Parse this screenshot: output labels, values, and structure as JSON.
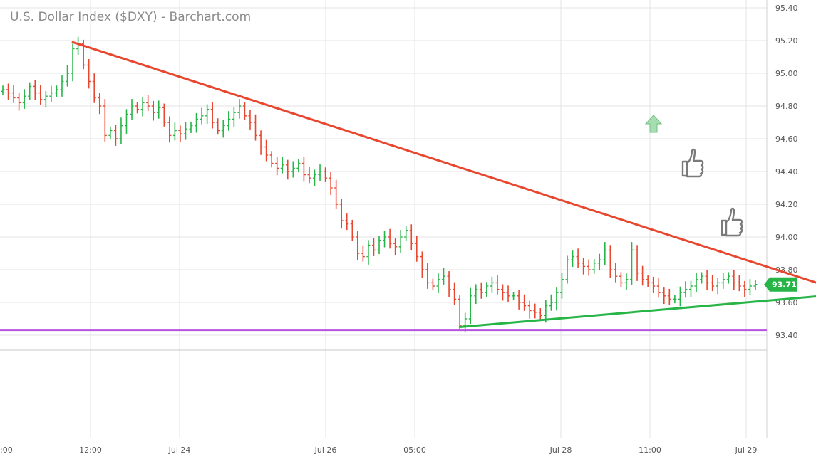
{
  "chart_data": {
    "type": "candlestick",
    "title": "U.S. Dollar Index ($DXY) - Barchart.com",
    "xlabel": "",
    "ylabel": "",
    "ylim": [
      93.3,
      95.45
    ],
    "yticks": [
      "95.40",
      "95.20",
      "95.00",
      "94.80",
      "94.60",
      "94.40",
      "94.20",
      "94.00",
      "93.80",
      "93.60",
      "93.40"
    ],
    "xticks": [
      ":00",
      "12:00",
      "Jul 24",
      "Jul 26",
      "05:00",
      "Jul 28",
      "11:00",
      "Jul 29"
    ],
    "last_price": "93.71",
    "grid": true,
    "series": [
      {
        "values": [
          94.9,
          94.88,
          94.85,
          94.82,
          94.86,
          94.92,
          94.88,
          94.84,
          94.86,
          94.88,
          94.9,
          94.95,
          95.0,
          95.15,
          95.18,
          95.05,
          94.95,
          94.85,
          94.8,
          94.62,
          94.65,
          94.6,
          94.68,
          94.75,
          94.8,
          94.78,
          94.82,
          94.8,
          94.76,
          94.79,
          94.7,
          94.62,
          94.65,
          94.63,
          94.66,
          94.68,
          94.72,
          94.74,
          94.78,
          94.7,
          94.65,
          94.68,
          94.72,
          94.76,
          94.8,
          94.74,
          94.7,
          94.62,
          94.55,
          94.5,
          94.45,
          94.42,
          94.44,
          94.4,
          94.42,
          94.45,
          94.38,
          94.36,
          94.38,
          94.4,
          94.36,
          94.3,
          94.2,
          94.1,
          94.08,
          94.0,
          93.9,
          93.88,
          93.95,
          93.92,
          93.98,
          94.0,
          93.96,
          93.94,
          94.0,
          94.04,
          93.96,
          93.88,
          93.8,
          93.72,
          93.7,
          93.74,
          93.76,
          93.68,
          93.62,
          93.46,
          93.5,
          93.64,
          93.68,
          93.66,
          93.7,
          93.72,
          93.68,
          93.66,
          93.64,
          93.64,
          93.6,
          93.58,
          93.55,
          93.54,
          93.52,
          93.58,
          93.6,
          93.66,
          93.74,
          93.86,
          93.88,
          93.84,
          93.82,
          93.8,
          93.84,
          93.86,
          93.92,
          93.8,
          93.76,
          93.72,
          93.74,
          93.92,
          93.78,
          93.74,
          93.72,
          93.7,
          93.66,
          93.64,
          93.62,
          93.62,
          93.66,
          93.68,
          93.7,
          93.74,
          93.76,
          93.72,
          93.7,
          93.72,
          93.74,
          93.76,
          93.72,
          93.7,
          93.68,
          93.7,
          93.71
        ]
      }
    ],
    "annotations": [
      {
        "type": "trendline",
        "color": "#e8472f",
        "from": {
          "index": 13,
          "value": 95.19
        },
        "to": {
          "index": 158,
          "value": 93.65
        }
      },
      {
        "type": "trendline",
        "color": "#27b548",
        "from": {
          "index": 85,
          "value": 93.45
        },
        "to": {
          "index": 156,
          "value": 93.65
        }
      },
      {
        "type": "hline",
        "color": "#b453e0",
        "value": 93.43
      }
    ]
  },
  "colors": {
    "up": "#27b548",
    "down": "#e8472f",
    "grid": "#e3e3e3",
    "badge": "#27b548",
    "hline": "#b453e0"
  },
  "icons": [
    "up-arrow-icon",
    "thumbs-up-icon",
    "thumbs-up-icon"
  ]
}
